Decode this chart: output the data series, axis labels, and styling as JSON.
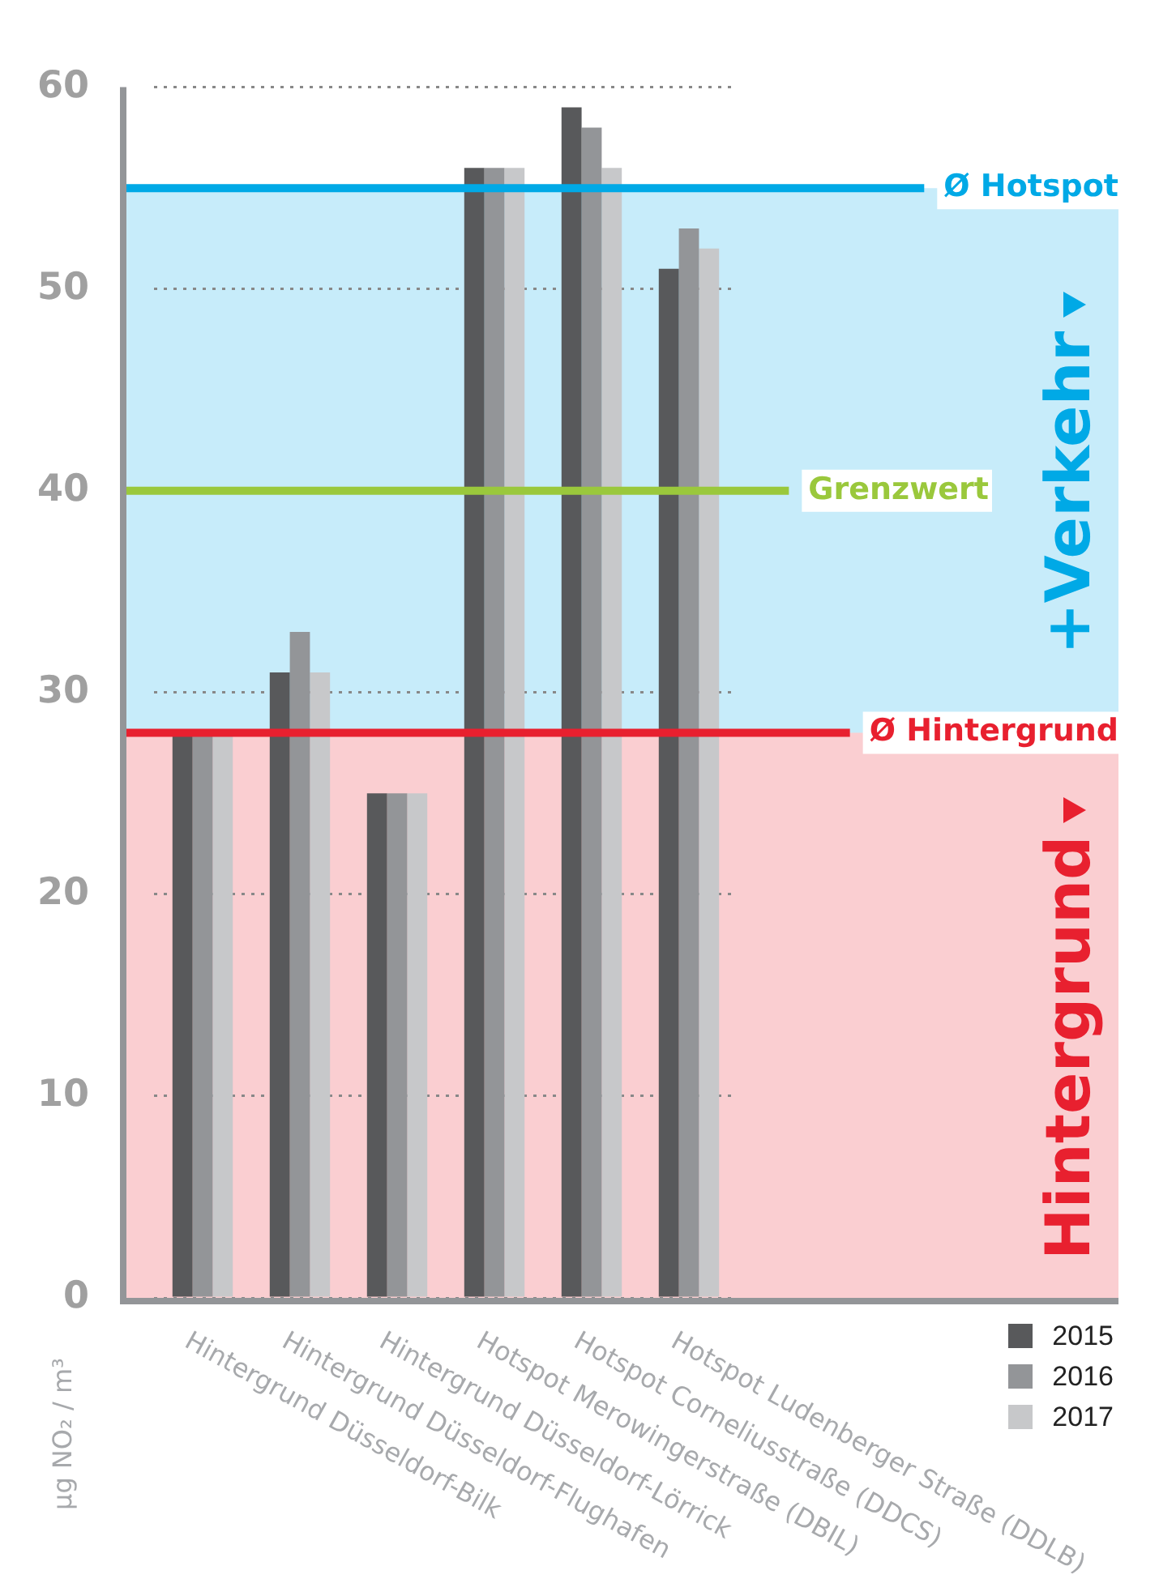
{
  "chart_data": {
    "type": "bar",
    "categories": [
      "Hintergrund Düsseldorf-Bilk",
      "Hintergrund Düsseldorf-Flughafen",
      "Hintergrund Düsseldorf-Lörrick",
      "Hotspot Merowingerstraße (DBIL)",
      "Hotspot Corneliusstraße (DDCS)",
      "Hotspot Ludenberger Straße (DDLB)"
    ],
    "series": [
      {
        "name": "2015",
        "color": "#58595b",
        "values": [
          28,
          31,
          25,
          56,
          59,
          51
        ]
      },
      {
        "name": "2016",
        "color": "#939598",
        "values": [
          28,
          33,
          25,
          56,
          58,
          53
        ]
      },
      {
        "name": "2017",
        "color": "#c7c8ca",
        "values": [
          28,
          31,
          25,
          56,
          56,
          52
        ]
      }
    ],
    "ylabel": "µg NO₂ / m³",
    "ylim": [
      0,
      60
    ],
    "yticks": [
      0,
      10,
      20,
      30,
      40,
      50,
      60
    ],
    "grid": "y",
    "legend": "bottom right",
    "ref_lines": [
      {
        "axis": "y",
        "value": 55,
        "label": "Ø Hotspot",
        "color": "#00a9e6"
      },
      {
        "axis": "y",
        "value": 40,
        "label": "Grenzwert",
        "color": "#9ac83c"
      },
      {
        "axis": "y",
        "value": 28,
        "label": "Ø Hintergrund",
        "color": "#e8202f"
      }
    ],
    "bands": [
      {
        "axis": "y",
        "from": 28,
        "to": 55,
        "label": "+Verkehr",
        "color": "#00a9e6"
      },
      {
        "axis": "y",
        "from": 0,
        "to": 28,
        "label": "Hintergrund",
        "color": "#e8202f"
      }
    ]
  }
}
